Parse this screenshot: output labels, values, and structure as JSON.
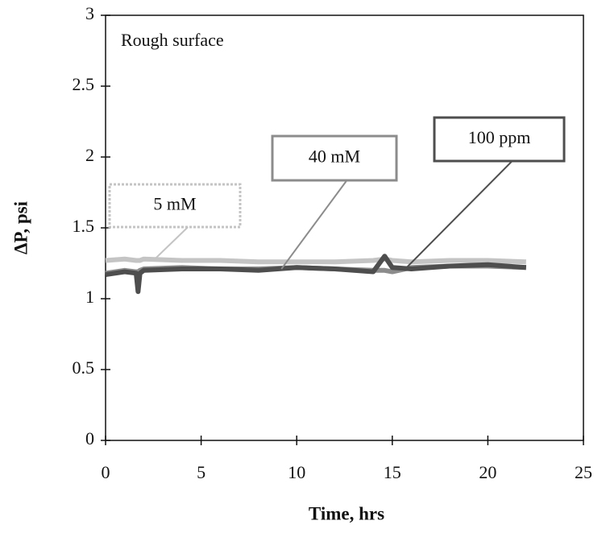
{
  "chart_data": {
    "type": "line",
    "annotation": "Rough surface",
    "x_label": "Time, hrs",
    "y_label": "ΔP, psi",
    "x": [
      0,
      1,
      1.6,
      1.7,
      1.8,
      2,
      4,
      6,
      8,
      10,
      12,
      14,
      14.6,
      15,
      16,
      18,
      20,
      22
    ],
    "series": [
      {
        "name": "5 mM",
        "color": "#c4c4c4",
        "values": [
          1.27,
          1.28,
          1.27,
          1.27,
          1.27,
          1.28,
          1.27,
          1.27,
          1.26,
          1.26,
          1.26,
          1.27,
          1.28,
          1.27,
          1.26,
          1.27,
          1.27,
          1.26
        ]
      },
      {
        "name": "40 mM",
        "color": "#8c8c8c",
        "values": [
          1.18,
          1.2,
          1.19,
          1.19,
          1.2,
          1.21,
          1.22,
          1.21,
          1.21,
          1.22,
          1.21,
          1.2,
          1.2,
          1.19,
          1.22,
          1.23,
          1.23,
          1.22
        ]
      },
      {
        "name": "100 ppm",
        "color": "#4e4e4e",
        "values": [
          1.17,
          1.19,
          1.18,
          1.05,
          1.18,
          1.2,
          1.21,
          1.21,
          1.2,
          1.22,
          1.21,
          1.19,
          1.3,
          1.22,
          1.21,
          1.23,
          1.24,
          1.22
        ]
      }
    ],
    "xlim": [
      0,
      25
    ],
    "ylim": [
      0,
      3
    ],
    "xticks": [
      0,
      5,
      10,
      15,
      20,
      25
    ],
    "yticks": [
      0,
      0.5,
      1,
      1.5,
      2,
      2.5,
      3
    ],
    "grid": false
  }
}
